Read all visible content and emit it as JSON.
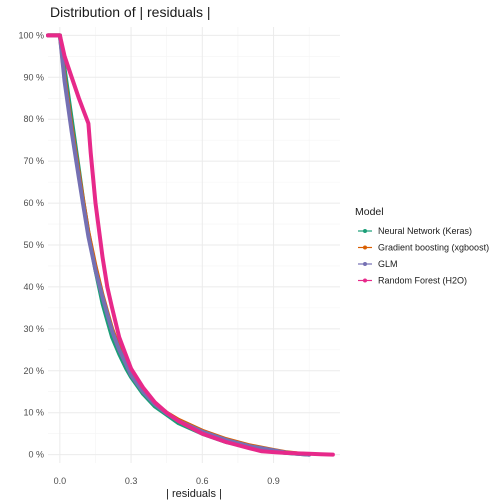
{
  "chart_data": {
    "type": "line",
    "title": "Distribution of | residuals |",
    "xlabel": "| residuals |",
    "ylabel": "",
    "xlim": [
      -0.05,
      1.18
    ],
    "ylim": [
      -0.02,
      1.02
    ],
    "x_ticks": [
      0.0,
      0.3,
      0.6,
      0.9
    ],
    "x_tick_labels": [
      "0.0",
      "0.3",
      "0.6",
      "0.9"
    ],
    "y_ticks": [
      0,
      0.1,
      0.2,
      0.3,
      0.4,
      0.5,
      0.6,
      0.7,
      0.8,
      0.9,
      1.0
    ],
    "y_tick_labels": [
      "0 %",
      "10 %",
      "20 %",
      "30 %",
      "40 %",
      "50 %",
      "60 %",
      "70 %",
      "80 %",
      "90 %",
      "100 %"
    ],
    "grid": true,
    "legend": {
      "title": "Model",
      "position": "right"
    },
    "series": [
      {
        "name": "Neural Network (Keras)",
        "color": "#1b9e77",
        "x": [
          -0.05,
          0,
          0.02,
          0.05,
          0.08,
          0.1,
          0.12,
          0.15,
          0.18,
          0.2,
          0.22,
          0.25,
          0.28,
          0.3,
          0.35,
          0.4,
          0.45,
          0.5,
          0.6,
          0.7,
          0.8,
          0.9,
          0.95,
          1.0,
          1.05
        ],
        "y": [
          1.0,
          1.0,
          0.92,
          0.8,
          0.68,
          0.6,
          0.53,
          0.44,
          0.36,
          0.32,
          0.28,
          0.24,
          0.205,
          0.185,
          0.145,
          0.115,
          0.095,
          0.075,
          0.05,
          0.03,
          0.018,
          0.008,
          0.004,
          0.002,
          0.0
        ]
      },
      {
        "name": "Gradient boosting (xgboost)",
        "color": "#d95f02",
        "x": [
          -0.05,
          0,
          0.02,
          0.05,
          0.08,
          0.1,
          0.12,
          0.15,
          0.18,
          0.2,
          0.22,
          0.25,
          0.28,
          0.3,
          0.35,
          0.4,
          0.45,
          0.5,
          0.6,
          0.7,
          0.8,
          0.9,
          0.95,
          1.0,
          1.05
        ],
        "y": [
          1.0,
          1.0,
          0.9,
          0.78,
          0.67,
          0.6,
          0.53,
          0.45,
          0.38,
          0.34,
          0.3,
          0.255,
          0.22,
          0.195,
          0.155,
          0.123,
          0.1,
          0.083,
          0.057,
          0.037,
          0.022,
          0.011,
          0.006,
          0.003,
          0.001
        ]
      },
      {
        "name": "GLM",
        "color": "#7570b3",
        "x": [
          -0.05,
          0,
          0.02,
          0.05,
          0.08,
          0.1,
          0.12,
          0.15,
          0.18,
          0.2,
          0.22,
          0.25,
          0.28,
          0.3,
          0.35,
          0.4,
          0.45,
          0.5,
          0.6,
          0.7,
          0.8,
          0.9,
          0.95,
          1.0,
          1.05
        ],
        "y": [
          1.0,
          1.0,
          0.89,
          0.77,
          0.66,
          0.59,
          0.52,
          0.44,
          0.375,
          0.335,
          0.295,
          0.25,
          0.215,
          0.19,
          0.15,
          0.12,
          0.098,
          0.08,
          0.055,
          0.035,
          0.02,
          0.01,
          0.005,
          0.002,
          0.0
        ]
      },
      {
        "name": "Random Forest (H2O)",
        "color": "#e7298a",
        "x": [
          -0.05,
          0,
          0.02,
          0.05,
          0.08,
          0.1,
          0.12,
          0.13,
          0.15,
          0.18,
          0.2,
          0.22,
          0.25,
          0.28,
          0.3,
          0.35,
          0.4,
          0.45,
          0.5,
          0.6,
          0.7,
          0.8,
          0.85,
          0.9,
          0.95,
          1.0,
          1.05,
          1.1,
          1.15
        ],
        "y": [
          1.0,
          1.0,
          0.95,
          0.9,
          0.85,
          0.82,
          0.79,
          0.72,
          0.6,
          0.47,
          0.4,
          0.35,
          0.28,
          0.235,
          0.205,
          0.16,
          0.125,
          0.1,
          0.08,
          0.05,
          0.03,
          0.015,
          0.008,
          0.006,
          0.004,
          0.003,
          0.002,
          0.001,
          0.0
        ]
      }
    ]
  }
}
